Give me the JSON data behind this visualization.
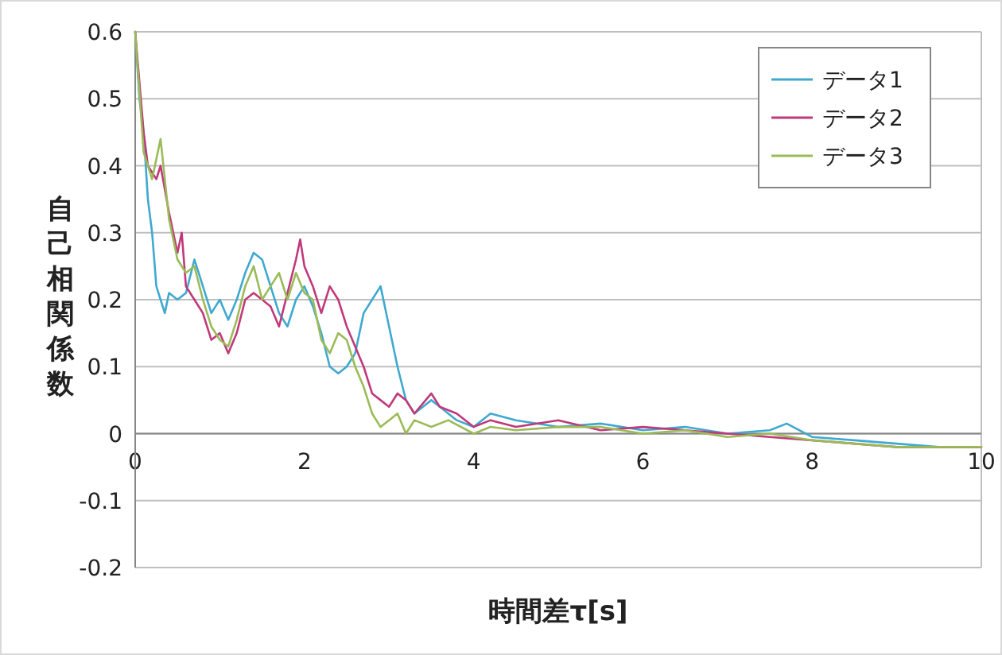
{
  "chart_data": {
    "type": "line",
    "xlabel": "時間差τ[s]",
    "ylabel": "自己相関係数",
    "xlim": [
      0,
      10
    ],
    "ylim": [
      -0.2,
      0.6
    ],
    "xticks": [
      0,
      2,
      4,
      6,
      8,
      10
    ],
    "yticks": [
      -0.2,
      -0.1,
      0,
      0.1,
      0.2,
      0.3,
      0.4,
      0.5,
      0.6
    ],
    "grid": "y",
    "legend": "top right",
    "series": [
      {
        "name": "データ1",
        "color": "#3fa9d0",
        "x": [
          0,
          0.05,
          0.1,
          0.15,
          0.2,
          0.25,
          0.3,
          0.35,
          0.4,
          0.5,
          0.6,
          0.7,
          0.8,
          0.9,
          1.0,
          1.1,
          1.2,
          1.3,
          1.4,
          1.5,
          1.6,
          1.7,
          1.8,
          1.9,
          2.0,
          2.1,
          2.2,
          2.3,
          2.4,
          2.5,
          2.6,
          2.7,
          2.8,
          2.9,
          3.0,
          3.1,
          3.2,
          3.3,
          3.4,
          3.5,
          3.6,
          3.8,
          4.0,
          4.2,
          4.5,
          5.0,
          5.5,
          6.0,
          6.5,
          7.0,
          7.5,
          7.7,
          8.0,
          8.5,
          9.0,
          9.5,
          10
        ],
        "values": [
          0.6,
          0.5,
          0.45,
          0.35,
          0.3,
          0.22,
          0.2,
          0.18,
          0.21,
          0.2,
          0.21,
          0.26,
          0.22,
          0.18,
          0.2,
          0.17,
          0.2,
          0.24,
          0.27,
          0.26,
          0.22,
          0.18,
          0.16,
          0.2,
          0.22,
          0.19,
          0.15,
          0.1,
          0.09,
          0.1,
          0.12,
          0.18,
          0.2,
          0.22,
          0.16,
          0.1,
          0.05,
          0.03,
          0.04,
          0.05,
          0.04,
          0.02,
          0.01,
          0.03,
          0.02,
          0.01,
          0.015,
          0.005,
          0.01,
          0.0,
          0.005,
          0.015,
          -0.005,
          -0.01,
          -0.015,
          -0.02,
          -0.02
        ]
      },
      {
        "name": "データ2",
        "color": "#c0397a",
        "x": [
          0,
          0.1,
          0.15,
          0.25,
          0.3,
          0.4,
          0.5,
          0.55,
          0.6,
          0.7,
          0.8,
          0.9,
          1.0,
          1.1,
          1.2,
          1.3,
          1.4,
          1.5,
          1.6,
          1.7,
          1.8,
          1.9,
          1.95,
          2.0,
          2.1,
          2.2,
          2.3,
          2.4,
          2.5,
          2.6,
          2.7,
          2.8,
          2.9,
          3.0,
          3.1,
          3.2,
          3.3,
          3.5,
          3.6,
          3.8,
          4.0,
          4.2,
          4.5,
          5.0,
          5.5,
          6.0,
          6.5,
          7.0,
          7.5,
          8.0,
          8.5,
          9.0,
          10
        ],
        "values": [
          0.6,
          0.45,
          0.4,
          0.38,
          0.4,
          0.33,
          0.27,
          0.3,
          0.22,
          0.2,
          0.18,
          0.14,
          0.15,
          0.12,
          0.15,
          0.2,
          0.21,
          0.2,
          0.19,
          0.16,
          0.21,
          0.26,
          0.29,
          0.25,
          0.22,
          0.18,
          0.22,
          0.2,
          0.16,
          0.13,
          0.1,
          0.06,
          0.05,
          0.04,
          0.06,
          0.05,
          0.03,
          0.06,
          0.04,
          0.03,
          0.01,
          0.02,
          0.01,
          0.02,
          0.005,
          0.01,
          0.005,
          0.0,
          -0.005,
          -0.01,
          -0.015,
          -0.02,
          -0.02
        ]
      },
      {
        "name": "データ3",
        "color": "#9bbb59",
        "x": [
          0,
          0.1,
          0.2,
          0.3,
          0.4,
          0.5,
          0.6,
          0.7,
          0.8,
          0.9,
          1.0,
          1.1,
          1.2,
          1.3,
          1.4,
          1.5,
          1.6,
          1.7,
          1.8,
          1.9,
          2.0,
          2.1,
          2.2,
          2.3,
          2.4,
          2.5,
          2.6,
          2.7,
          2.8,
          2.9,
          3.0,
          3.1,
          3.2,
          3.3,
          3.5,
          3.7,
          4.0,
          4.2,
          4.5,
          5.0,
          5.5,
          6.0,
          6.5,
          7.0,
          7.5,
          8.0,
          8.5,
          9.0,
          10
        ],
        "values": [
          0.6,
          0.42,
          0.38,
          0.44,
          0.32,
          0.26,
          0.24,
          0.25,
          0.2,
          0.16,
          0.14,
          0.13,
          0.17,
          0.22,
          0.25,
          0.2,
          0.22,
          0.24,
          0.2,
          0.24,
          0.21,
          0.2,
          0.14,
          0.12,
          0.15,
          0.14,
          0.1,
          0.07,
          0.03,
          0.01,
          0.02,
          0.03,
          0.0,
          0.02,
          0.01,
          0.02,
          0.0,
          0.01,
          0.005,
          0.01,
          0.01,
          0.0,
          0.005,
          -0.005,
          0.0,
          -0.01,
          -0.015,
          -0.02,
          -0.02
        ]
      }
    ]
  }
}
